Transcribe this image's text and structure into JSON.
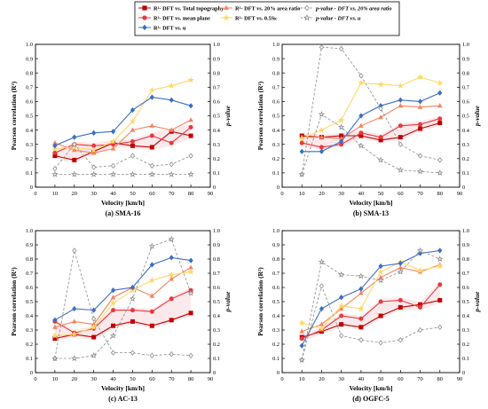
{
  "legend": {
    "entries": [
      {
        "label": "R²- DFT vs. Total topography",
        "color": "#c00000",
        "marker": "square",
        "dash": false
      },
      {
        "label": "R²- DFT vs. 20% area ratio",
        "color": "#f4845f",
        "marker": "triangle",
        "dash": false
      },
      {
        "label": "p-value - DFT vs. 20% area ratio",
        "color": "#8c8c8c",
        "marker": "diamond-open",
        "dash": true
      },
      {
        "label": "R²- DFT vs. mean plane",
        "color": "#e8383d",
        "marker": "circle",
        "dash": false
      },
      {
        "label": "R²- DFT vs. 0.5Sₖ",
        "color": "#ffd966",
        "marker": "star",
        "dash": false
      },
      {
        "label": "p-value - DFT vs. u",
        "color": "#8c8c8c",
        "marker": "star-open",
        "dash": true
      },
      {
        "label": "R²- DFT vs. u",
        "color": "#3a6fc4",
        "marker": "diamond",
        "dash": false
      }
    ]
  },
  "chart_data": [
    {
      "type": "line",
      "caption": "(a) SMA-16",
      "xlabel": "Velocity [km/h]",
      "ylabel": "Pearson correlation (R²)",
      "ylabel_right": "p-value",
      "xlim": [
        0,
        90
      ],
      "ylim": [
        0,
        1.0
      ],
      "ylim_right": [
        0,
        1.0
      ],
      "x_ticks": [
        0,
        10,
        20,
        30,
        40,
        50,
        60,
        70,
        80,
        90
      ],
      "y_ticks": [
        0,
        0.1,
        0.2,
        0.3,
        0.4,
        0.5,
        0.6,
        0.7,
        0.8,
        0.9,
        1.0
      ],
      "x": [
        10,
        20,
        30,
        40,
        50,
        60,
        70,
        80
      ],
      "series": [
        {
          "name": "R²- DFT vs. Total topography",
          "values": [
            0.22,
            0.19,
            0.25,
            0.31,
            0.29,
            0.28,
            0.39,
            0.36
          ]
        },
        {
          "name": "R²- DFT vs. mean plane",
          "values": [
            0.24,
            0.3,
            0.29,
            0.3,
            0.32,
            0.36,
            0.31,
            0.42
          ]
        },
        {
          "name": "R²- DFT vs. 20% area ratio",
          "values": [
            0.31,
            0.26,
            0.24,
            0.27,
            0.4,
            0.43,
            0.4,
            0.47
          ]
        },
        {
          "name": "R²- DFT vs. 0.5Sₖ",
          "values": [
            0.27,
            0.28,
            0.26,
            0.32,
            0.46,
            0.68,
            0.71,
            0.75
          ]
        },
        {
          "name": "R²- DFT vs. u",
          "values": [
            0.29,
            0.35,
            0.38,
            0.39,
            0.54,
            0.63,
            0.61,
            0.57
          ]
        },
        {
          "name": "p-value - DFT vs. 20% area ratio",
          "axis": "right",
          "values": [
            0.13,
            0.3,
            0.14,
            0.15,
            0.22,
            0.15,
            0.16,
            0.22
          ]
        },
        {
          "name": "p-value - DFT vs. u",
          "axis": "right",
          "values": [
            0.09,
            0.09,
            0.09,
            0.09,
            0.09,
            0.09,
            0.09,
            0.09
          ]
        }
      ]
    },
    {
      "type": "line",
      "caption": "(b) SMA-13",
      "xlabel": "Velocity [km/h]",
      "ylabel": "Pearson correlation (R²)",
      "ylabel_right": "p-value",
      "xlim": [
        0,
        90
      ],
      "ylim": [
        0,
        1.0
      ],
      "ylim_right": [
        0,
        1.0
      ],
      "x_ticks": [
        0,
        10,
        20,
        30,
        40,
        50,
        60,
        70,
        80,
        90
      ],
      "y_ticks": [
        0,
        0.1,
        0.2,
        0.3,
        0.4,
        0.5,
        0.6,
        0.7,
        0.8,
        0.9,
        1.0
      ],
      "x": [
        10,
        20,
        30,
        40,
        50,
        60,
        70,
        80
      ],
      "series": [
        {
          "name": "R²- DFT vs. Total topography",
          "values": [
            0.36,
            0.35,
            0.36,
            0.36,
            0.33,
            0.35,
            0.41,
            0.45
          ]
        },
        {
          "name": "R²- DFT vs. mean plane",
          "values": [
            0.31,
            0.28,
            0.3,
            0.38,
            0.35,
            0.43,
            0.44,
            0.48
          ]
        },
        {
          "name": "R²- DFT vs. 20% area ratio",
          "values": [
            0.35,
            0.35,
            0.34,
            0.43,
            0.49,
            0.57,
            0.56,
            0.57
          ]
        },
        {
          "name": "R²- DFT vs. 0.5Sₖ",
          "values": [
            0.34,
            0.4,
            0.47,
            0.73,
            0.72,
            0.71,
            0.77,
            0.73
          ]
        },
        {
          "name": "R²- DFT vs. u",
          "values": [
            0.25,
            0.25,
            0.32,
            0.5,
            0.57,
            0.61,
            0.6,
            0.66
          ]
        },
        {
          "name": "p-value - DFT vs. 20% area ratio",
          "axis": "right",
          "values": [
            0.09,
            0.98,
            0.97,
            0.78,
            0.55,
            0.3,
            0.22,
            0.19
          ]
        },
        {
          "name": "p-value - DFT vs. u",
          "axis": "right",
          "values": [
            0.09,
            0.51,
            0.42,
            0.29,
            0.19,
            0.12,
            0.11,
            0.1
          ]
        }
      ]
    },
    {
      "type": "line",
      "caption": "(c) AC-13",
      "xlabel": "Velocity [km/h]",
      "ylabel": "Pearson correlation (R²)",
      "ylabel_right": "p-value",
      "xlim": [
        0,
        90
      ],
      "ylim": [
        0,
        1.0
      ],
      "ylim_right": [
        0,
        1.0
      ],
      "x_ticks": [
        0,
        10,
        20,
        30,
        40,
        50,
        60,
        70,
        80,
        90
      ],
      "y_ticks": [
        0,
        0.1,
        0.2,
        0.3,
        0.4,
        0.5,
        0.6,
        0.7,
        0.8,
        0.9,
        1.0
      ],
      "x": [
        10,
        20,
        30,
        40,
        50,
        60,
        70,
        80
      ],
      "series": [
        {
          "name": "R²- DFT vs. Total topography",
          "values": [
            0.24,
            0.27,
            0.25,
            0.33,
            0.36,
            0.33,
            0.37,
            0.42
          ]
        },
        {
          "name": "R²- DFT vs. mean plane",
          "values": [
            0.36,
            0.28,
            0.31,
            0.44,
            0.44,
            0.43,
            0.52,
            0.58
          ]
        },
        {
          "name": "R²- DFT vs. 20% area ratio",
          "values": [
            0.32,
            0.36,
            0.34,
            0.53,
            0.6,
            0.54,
            0.66,
            0.74
          ]
        },
        {
          "name": "R²- DFT vs. 0.5Sₖ",
          "values": [
            0.26,
            0.27,
            0.32,
            0.49,
            0.58,
            0.65,
            0.69,
            0.71
          ]
        },
        {
          "name": "R²- DFT vs. u",
          "values": [
            0.37,
            0.45,
            0.44,
            0.58,
            0.6,
            0.76,
            0.81,
            0.79
          ]
        },
        {
          "name": "p-value - DFT vs. 20% area ratio",
          "axis": "right",
          "values": [
            0.1,
            0.86,
            0.38,
            0.14,
            0.14,
            0.12,
            0.13,
            0.12
          ]
        },
        {
          "name": "p-value - DFT vs. u",
          "axis": "right",
          "values": [
            0.1,
            0.1,
            0.12,
            0.26,
            0.52,
            0.89,
            0.94,
            0.56
          ]
        }
      ]
    },
    {
      "type": "line",
      "caption": "(d) OGFC-5",
      "xlabel": "Velocity [km/h]",
      "ylabel": "Pearson correlation (R²)",
      "ylabel_right": "p-value",
      "xlim": [
        0,
        90
      ],
      "ylim": [
        0,
        1.0
      ],
      "ylim_right": [
        0,
        1.0
      ],
      "x_ticks": [
        0,
        10,
        20,
        30,
        40,
        50,
        60,
        70,
        80,
        90
      ],
      "y_ticks": [
        0,
        0.1,
        0.2,
        0.3,
        0.4,
        0.5,
        0.6,
        0.7,
        0.8,
        0.9,
        1.0
      ],
      "x": [
        10,
        20,
        30,
        40,
        50,
        60,
        70,
        80
      ],
      "series": [
        {
          "name": "R²- DFT vs. Total topography",
          "values": [
            0.25,
            0.29,
            0.34,
            0.32,
            0.4,
            0.46,
            0.48,
            0.51
          ]
        },
        {
          "name": "R²- DFT vs. mean plane",
          "values": [
            0.24,
            0.3,
            0.4,
            0.38,
            0.5,
            0.51,
            0.46,
            0.62
          ]
        },
        {
          "name": "R²- DFT vs. 20% area ratio",
          "values": [
            0.29,
            0.34,
            0.45,
            0.56,
            0.67,
            0.74,
            0.71,
            0.76
          ]
        },
        {
          "name": "R²- DFT vs. 0.5Sₖ",
          "values": [
            0.35,
            0.31,
            0.47,
            0.45,
            0.71,
            0.78,
            0.72,
            0.75
          ]
        },
        {
          "name": "R²- DFT vs. u",
          "values": [
            0.19,
            0.45,
            0.53,
            0.59,
            0.75,
            0.77,
            0.84,
            0.86
          ]
        },
        {
          "name": "p-value - DFT vs. 20% area ratio",
          "axis": "right",
          "values": [
            0.09,
            0.61,
            0.26,
            0.23,
            0.21,
            0.23,
            0.3,
            0.32
          ]
        },
        {
          "name": "p-value - DFT vs. u",
          "axis": "right",
          "values": [
            0.09,
            0.78,
            0.69,
            0.68,
            0.65,
            0.71,
            0.86,
            0.8
          ]
        }
      ]
    }
  ]
}
